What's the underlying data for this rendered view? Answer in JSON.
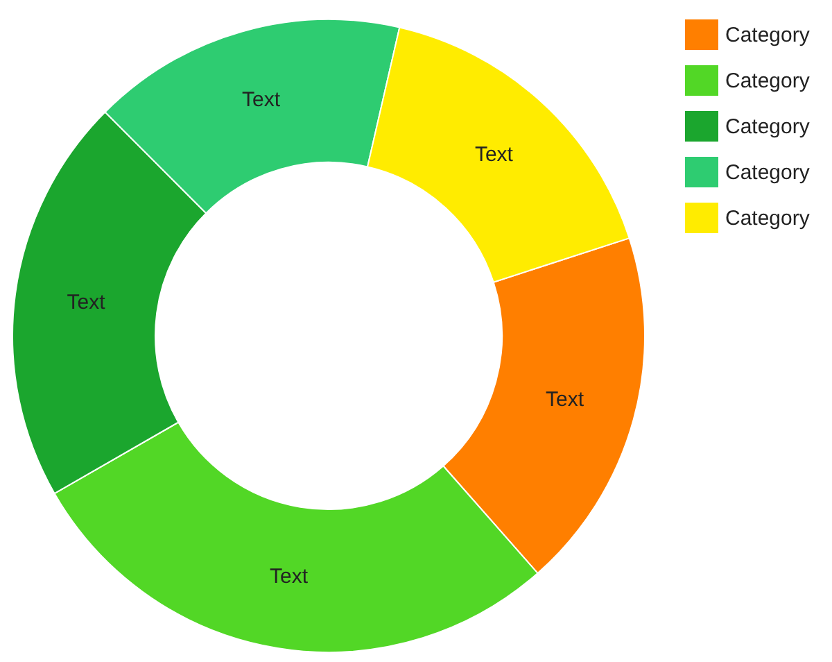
{
  "chart_data": {
    "type": "donut",
    "categories": [
      "Category",
      "Category",
      "Category",
      "Category",
      "Category"
    ],
    "values": [
      18.5,
      28.2,
      20.8,
      16.1,
      16.4
    ],
    "colors": [
      "#ff7f00",
      "#52d726",
      "#1ba62e",
      "#2ecc71",
      "#ffec00"
    ],
    "value_labels": [
      "Text",
      "Text",
      "Text",
      "Text",
      "Text"
    ],
    "legend": "top right"
  }
}
